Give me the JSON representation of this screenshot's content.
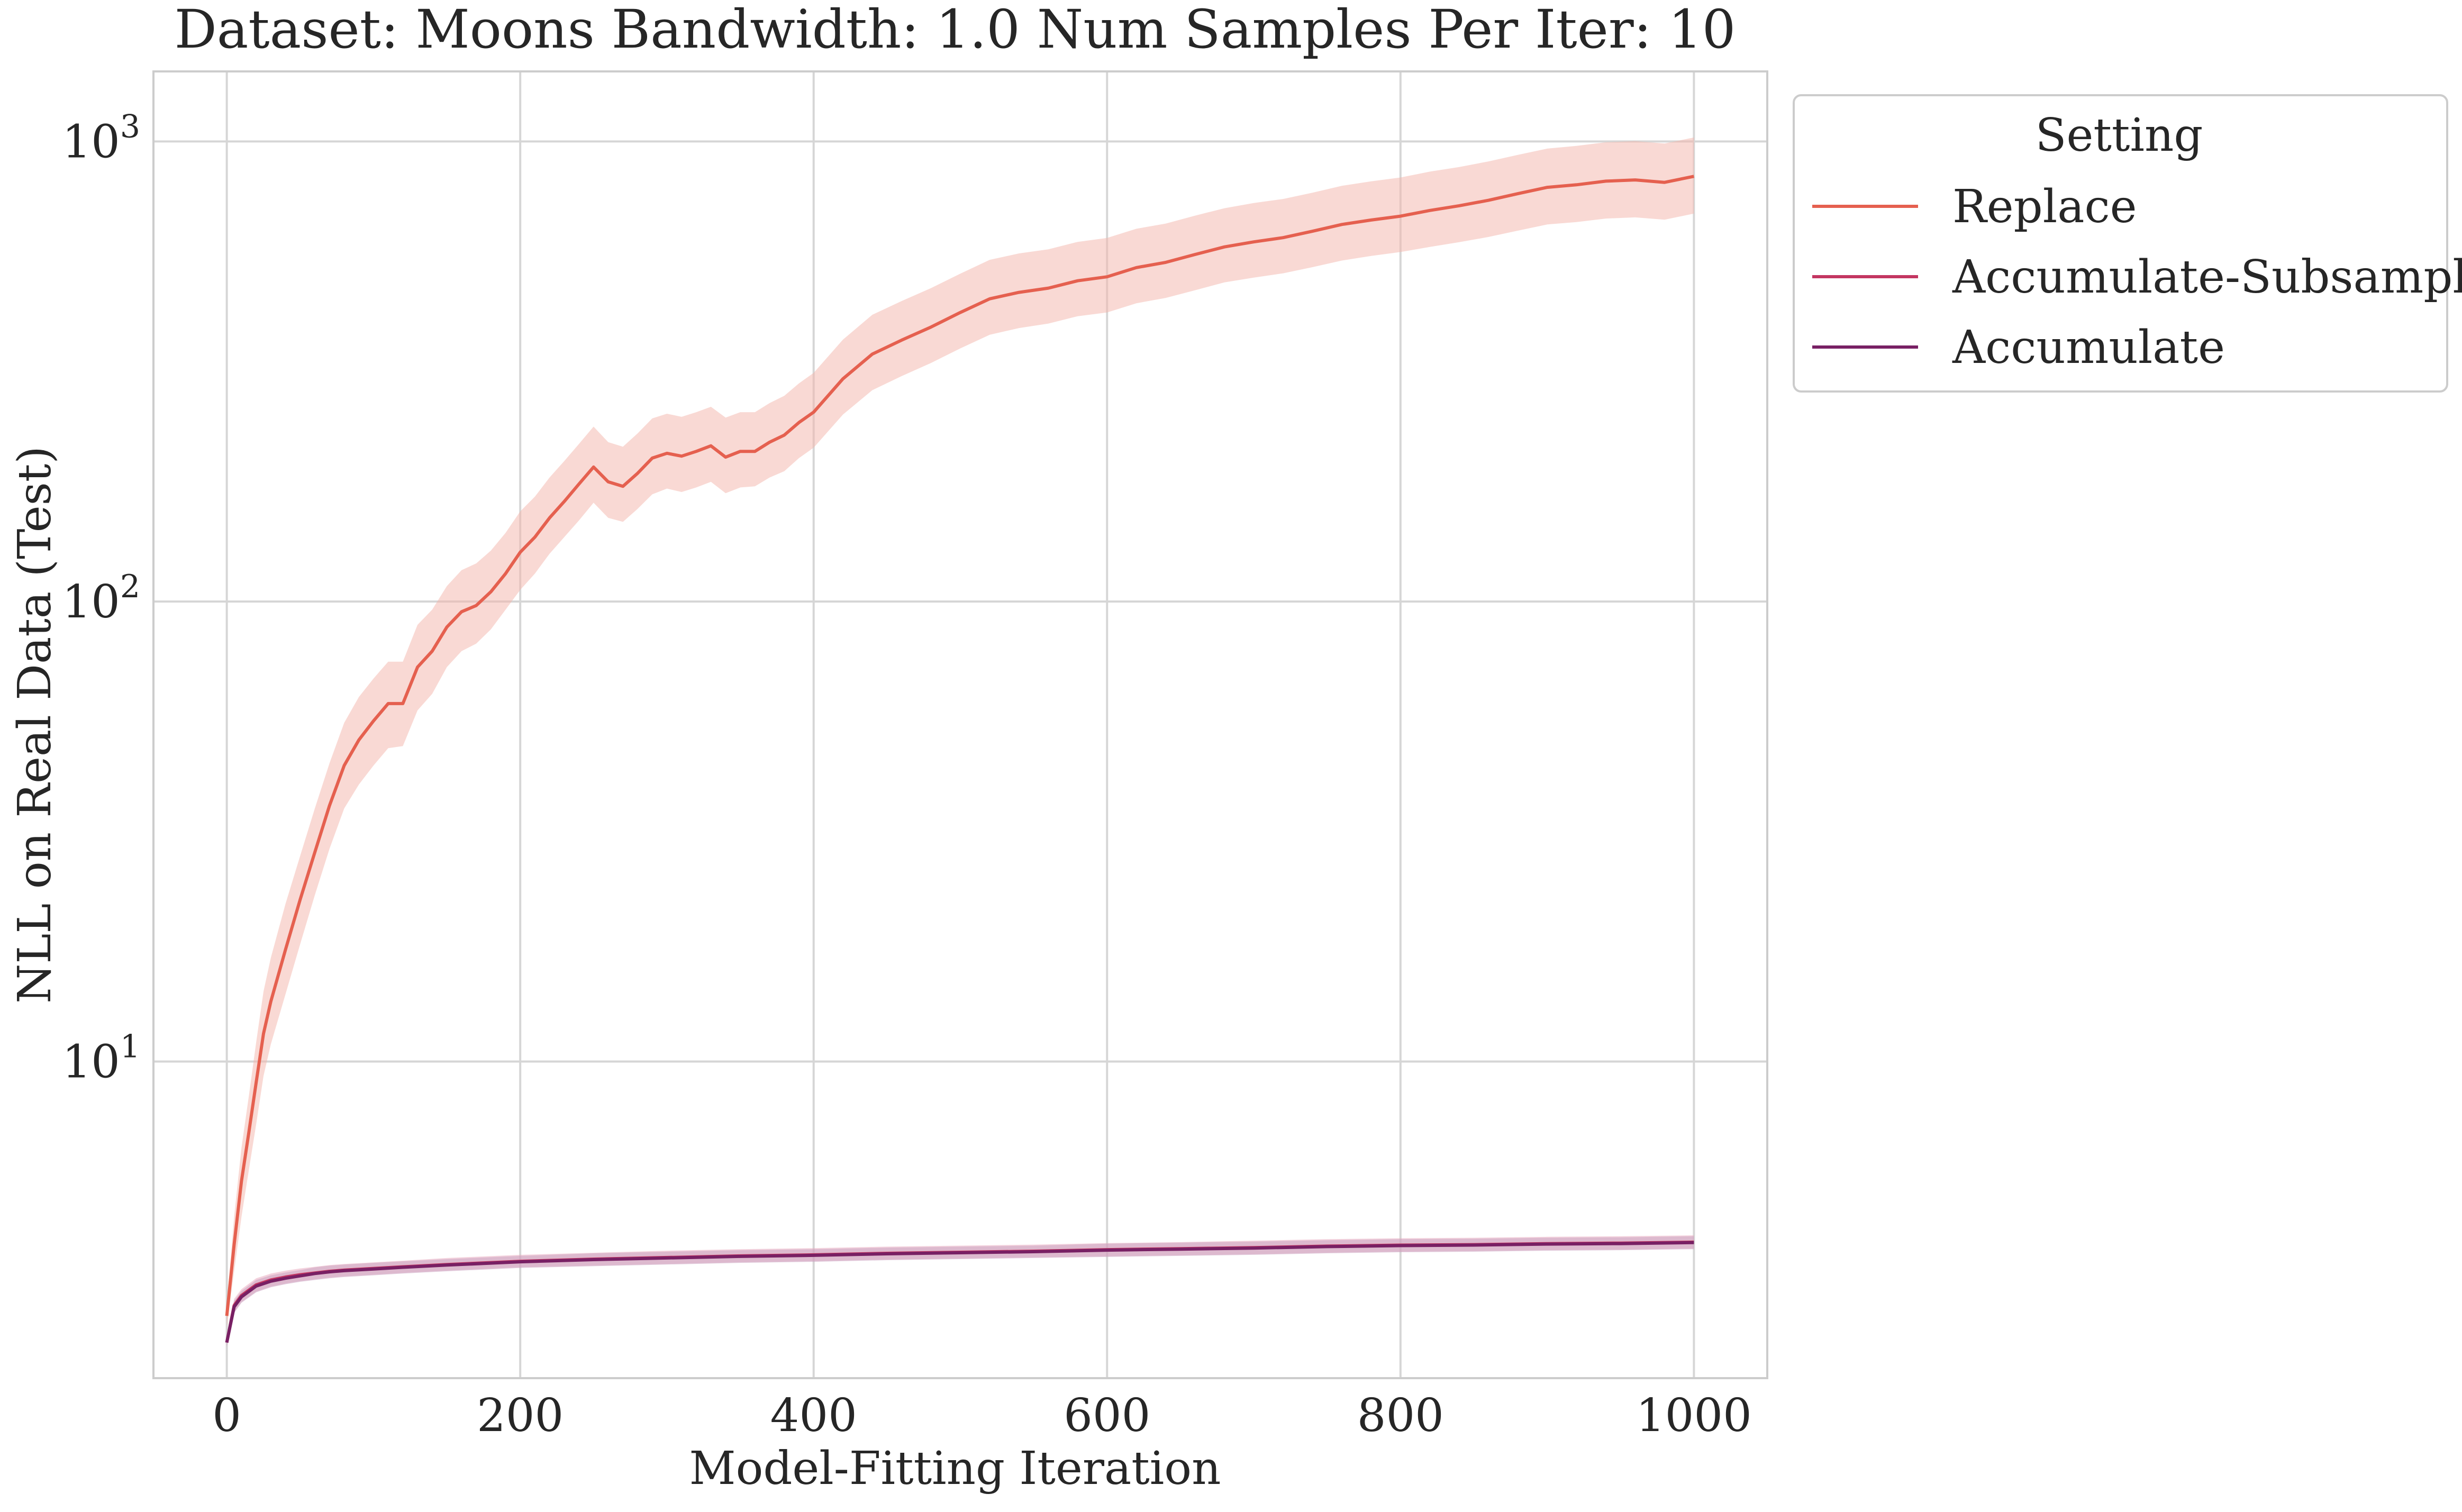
{
  "chart_data": {
    "type": "line",
    "title": "Dataset: Moons Bandwidth: 1.0 Num Samples Per Iter: 10",
    "xlabel": "Model-Fitting Iteration",
    "ylabel": "NLL on Real Data (Test)",
    "xlim": [
      -50,
      1050
    ],
    "ylim": [
      2.05,
      1420
    ],
    "yscale": "log",
    "grid": true,
    "x_ticks": [
      {
        "value": 0,
        "label": "0"
      },
      {
        "value": 200,
        "label": "200"
      },
      {
        "value": 400,
        "label": "400"
      },
      {
        "value": 600,
        "label": "600"
      },
      {
        "value": 800,
        "label": "800"
      },
      {
        "value": 1000,
        "label": "1000"
      }
    ],
    "y_ticks": [
      {
        "value": 10,
        "base": "10",
        "exp": "1"
      },
      {
        "value": 100,
        "base": "10",
        "exp": "2"
      },
      {
        "value": 1000,
        "base": "10",
        "exp": "3"
      }
    ],
    "legend": {
      "title": "Setting",
      "placement": "outside-right-top"
    },
    "series": [
      {
        "name": "Replace",
        "color": "#e5604f",
        "band_color": "#f3b3aa",
        "x": [
          0,
          5,
          10,
          15,
          20,
          25,
          30,
          40,
          50,
          60,
          70,
          80,
          90,
          100,
          110,
          120,
          130,
          140,
          150,
          160,
          170,
          180,
          190,
          200,
          210,
          220,
          230,
          240,
          250,
          260,
          270,
          280,
          290,
          300,
          310,
          320,
          330,
          340,
          350,
          360,
          370,
          380,
          390,
          400,
          420,
          440,
          460,
          480,
          500,
          520,
          540,
          560,
          580,
          600,
          620,
          640,
          660,
          680,
          700,
          720,
          740,
          760,
          780,
          800,
          820,
          840,
          860,
          880,
          900,
          920,
          940,
          960,
          980,
          1000
        ],
        "y": [
          2.8,
          4.0,
          5.5,
          7.0,
          9.0,
          11.5,
          13.5,
          17.5,
          22.5,
          28.5,
          36.0,
          44.0,
          50.0,
          55.0,
          60.0,
          60.0,
          72.0,
          78.0,
          88.0,
          95.0,
          98.0,
          105.0,
          115.0,
          128.0,
          138.0,
          152.0,
          165.0,
          180.0,
          196.0,
          182.0,
          178.0,
          190.0,
          205.0,
          210.0,
          207.0,
          212.0,
          218.0,
          206.0,
          212.0,
          212.0,
          222.0,
          230.0,
          245.0,
          258.0,
          305.0,
          345.0,
          370.0,
          395.0,
          425.0,
          455.0,
          470.0,
          480.0,
          498.0,
          508.0,
          532.0,
          546.0,
          568.0,
          590.0,
          605.0,
          618.0,
          638.0,
          660.0,
          675.0,
          688.0,
          708.0,
          725.0,
          745.0,
          770.0,
          795.0,
          805.0,
          820.0,
          825.0,
          815.0,
          840.0
        ],
        "lower": [
          2.65,
          3.5,
          4.6,
          5.8,
          7.3,
          9.3,
          10.9,
          14.0,
          18.0,
          23.0,
          29.0,
          35.5,
          40.0,
          44.0,
          48.0,
          48.5,
          58.0,
          63.0,
          72.0,
          78.0,
          81.0,
          87.0,
          96.0,
          106.0,
          115.0,
          127.0,
          138.0,
          150.0,
          164.0,
          152.0,
          149.0,
          159.0,
          171.0,
          176.0,
          173.0,
          177.0,
          182.0,
          172.0,
          177.0,
          178.0,
          186.0,
          192.0,
          205.0,
          216.0,
          255.0,
          288.0,
          309.0,
          330.0,
          355.0,
          380.0,
          393.0,
          402.0,
          417.0,
          425.0,
          445.0,
          457.0,
          475.0,
          494.0,
          506.0,
          517.0,
          533.0,
          551.0,
          564.0,
          575.0,
          590.0,
          604.0,
          620.0,
          640.0,
          660.0,
          668.0,
          680.0,
          684.0,
          676.0,
          697.0
        ],
        "upper": [
          2.95,
          4.6,
          6.5,
          8.4,
          11.0,
          14.2,
          16.8,
          22.0,
          28.0,
          35.5,
          44.5,
          54.5,
          62.0,
          68.0,
          74.0,
          74.0,
          89.0,
          96.0,
          108.0,
          117.0,
          121.0,
          129.0,
          141.0,
          157.0,
          169.0,
          186.0,
          202.0,
          220.0,
          240.0,
          222.0,
          217.0,
          232.0,
          250.0,
          256.0,
          252.0,
          258.0,
          265.0,
          251.0,
          258.0,
          258.0,
          270.0,
          280.0,
          298.0,
          314.0,
          371.0,
          420.0,
          450.0,
          480.0,
          516.0,
          553.0,
          571.0,
          583.0,
          605.0,
          617.0,
          646.0,
          663.0,
          690.0,
          716.0,
          735.0,
          750.0,
          774.0,
          801.0,
          819.0,
          835.0,
          860.0,
          880.0,
          905.0,
          935.0,
          965.0,
          978.0,
          996.0,
          1002.0,
          990.0,
          1020.0
        ]
      },
      {
        "name": "Accumulate-Subsample",
        "color": "#c33661",
        "band_color": "#e8a6bb",
        "x": [
          0,
          5,
          10,
          20,
          30,
          40,
          50,
          60,
          70,
          80,
          100,
          120,
          150,
          200,
          250,
          300,
          350,
          400,
          450,
          500,
          550,
          600,
          650,
          700,
          750,
          800,
          850,
          900,
          950,
          1000
        ],
        "y": [
          2.45,
          2.95,
          3.1,
          3.27,
          3.35,
          3.4,
          3.44,
          3.47,
          3.5,
          3.52,
          3.55,
          3.58,
          3.62,
          3.68,
          3.72,
          3.75,
          3.78,
          3.8,
          3.83,
          3.85,
          3.87,
          3.9,
          3.92,
          3.94,
          3.97,
          3.99,
          4.0,
          4.02,
          4.03,
          4.05
        ],
        "lower": [
          2.4,
          2.85,
          3.0,
          3.16,
          3.24,
          3.29,
          3.33,
          3.36,
          3.39,
          3.41,
          3.44,
          3.47,
          3.51,
          3.57,
          3.6,
          3.63,
          3.66,
          3.68,
          3.71,
          3.73,
          3.75,
          3.77,
          3.79,
          3.81,
          3.84,
          3.86,
          3.87,
          3.89,
          3.9,
          3.92
        ],
        "upper": [
          2.5,
          3.05,
          3.2,
          3.38,
          3.46,
          3.51,
          3.55,
          3.58,
          3.61,
          3.63,
          3.66,
          3.69,
          3.74,
          3.8,
          3.84,
          3.88,
          3.91,
          3.93,
          3.96,
          3.98,
          4.0,
          4.03,
          4.05,
          4.08,
          4.11,
          4.13,
          4.14,
          4.16,
          4.17,
          4.19
        ]
      },
      {
        "name": "Accumulate",
        "color": "#782064",
        "band_color": "#c7a0bf",
        "x": [
          0,
          5,
          10,
          20,
          30,
          40,
          50,
          60,
          70,
          80,
          100,
          120,
          150,
          200,
          250,
          300,
          350,
          400,
          450,
          500,
          550,
          600,
          650,
          700,
          750,
          800,
          850,
          900,
          950,
          1000
        ],
        "y": [
          2.45,
          2.93,
          3.08,
          3.25,
          3.33,
          3.38,
          3.42,
          3.46,
          3.49,
          3.51,
          3.54,
          3.57,
          3.61,
          3.67,
          3.71,
          3.74,
          3.77,
          3.79,
          3.82,
          3.84,
          3.86,
          3.89,
          3.91,
          3.93,
          3.96,
          3.98,
          3.99,
          4.01,
          4.02,
          4.04
        ],
        "lower": [
          2.4,
          2.84,
          2.99,
          3.15,
          3.23,
          3.28,
          3.32,
          3.35,
          3.38,
          3.4,
          3.43,
          3.46,
          3.5,
          3.56,
          3.59,
          3.62,
          3.65,
          3.67,
          3.7,
          3.72,
          3.74,
          3.76,
          3.78,
          3.8,
          3.83,
          3.85,
          3.86,
          3.88,
          3.89,
          3.91
        ],
        "upper": [
          2.5,
          3.02,
          3.17,
          3.35,
          3.43,
          3.48,
          3.52,
          3.57,
          3.6,
          3.62,
          3.65,
          3.68,
          3.72,
          3.78,
          3.83,
          3.86,
          3.89,
          3.91,
          3.94,
          3.96,
          3.98,
          4.02,
          4.04,
          4.06,
          4.09,
          4.11,
          4.12,
          4.14,
          4.15,
          4.17
        ]
      }
    ]
  }
}
